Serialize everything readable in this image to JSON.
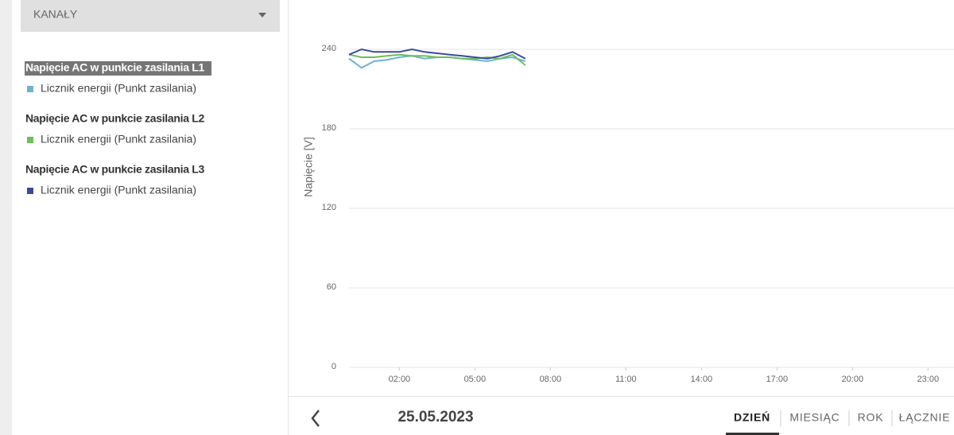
{
  "sidebar": {
    "dropdown": "KANAŁY"
  },
  "chart_data": {
    "type": "line",
    "y_label": "Napięcie [V]",
    "x": [
      0,
      0.5,
      1,
      1.5,
      2,
      2.5,
      3,
      3.5,
      4,
      4.5,
      5,
      5.5,
      6,
      6.5,
      7
    ],
    "xlim": [
      0,
      24
    ],
    "xticks": [
      {
        "value": 2,
        "label": "02:00"
      },
      {
        "value": 5,
        "label": "05:00"
      },
      {
        "value": 8,
        "label": "08:00"
      },
      {
        "value": 11,
        "label": "11:00"
      },
      {
        "value": 14,
        "label": "14:00"
      },
      {
        "value": 17,
        "label": "17:00"
      },
      {
        "value": 20,
        "label": "20:00"
      },
      {
        "value": 23,
        "label": "23:00"
      }
    ],
    "ylim": [
      0,
      240
    ],
    "yticks": [
      0,
      60,
      120,
      180,
      240
    ],
    "grid": true,
    "series": [
      {
        "name": "Napięcie AC w punkcie zasilania L1",
        "label": "Licznik energii (Punkt zasilania)",
        "color": "#6db3cf",
        "values": [
          233,
          226,
          231,
          232,
          234,
          235,
          233,
          234,
          234,
          233,
          232,
          231,
          233,
          234,
          231
        ]
      },
      {
        "name": "Napięcie AC w punkcie zasilania L2",
        "label": "Licznik energii (Punkt zasilania)",
        "color": "#6abf59",
        "values": [
          236,
          234,
          234,
          235,
          236,
          235,
          235,
          234,
          234,
          233,
          233,
          234,
          233,
          236,
          228
        ]
      },
      {
        "name": "Napięcie AC w punkcie zasilania L3",
        "label": "Licznik energii (Punkt zasilania)",
        "color": "#3b4a9c",
        "values": [
          236,
          240,
          238,
          238,
          238,
          240,
          238,
          237,
          236,
          235,
          234,
          233,
          235,
          238,
          233
        ]
      }
    ]
  },
  "footer": {
    "date": "25.05.2023",
    "tabs": [
      "DZIEŃ",
      "MIESIĄC",
      "ROK",
      "ŁĄCZNIE"
    ],
    "active": 0
  }
}
